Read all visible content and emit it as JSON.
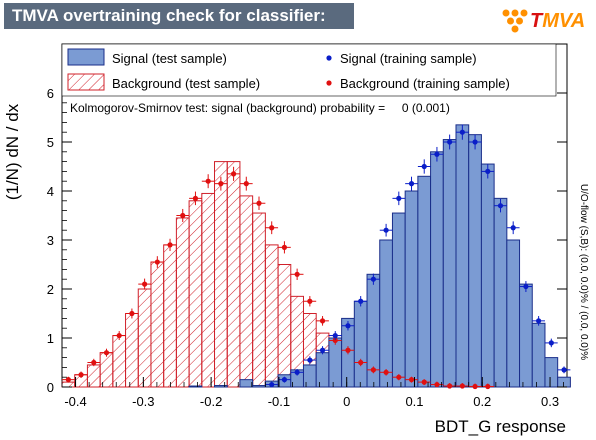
{
  "header": {
    "title": "TMVA overtraining check for classifier: BDT_G",
    "logo_text_t": "T",
    "logo_text_rest": "MVA"
  },
  "colors": {
    "signal_fill": "#7b9bd3",
    "signal_line": "#1a2e8a",
    "signal_points": "#0a1ec8",
    "background_line": "#d0202a",
    "background_points": "#e01010",
    "title_bg": "#5a6a7e"
  },
  "chart_data": {
    "type": "histogram",
    "xlabel": "BDT_G response",
    "ylabel": "(1/N) dN / dx",
    "xlim": [
      -0.42,
      0.325
    ],
    "ylim": [
      0,
      7.0
    ],
    "x_ticks": [
      -0.4,
      -0.3,
      -0.2,
      -0.1,
      0,
      0.1,
      0.2,
      0.3
    ],
    "x_tick_labels": [
      "-0.4",
      "-0.3",
      "-0.2",
      "-0.1",
      "0",
      "0.1",
      "0.2",
      "0.3"
    ],
    "y_ticks": [
      0,
      1,
      2,
      3,
      4,
      5,
      6
    ],
    "y_tick_labels": [
      "0",
      "1",
      "2",
      "3",
      "4",
      "5",
      "6"
    ],
    "bin_edges_start": -0.42,
    "bin_width": 0.01875,
    "series": [
      {
        "name": "Signal (test sample)",
        "style": "filled-hist",
        "values": [
          0,
          0,
          0,
          0,
          0,
          0,
          0,
          0,
          0,
          0,
          0.02,
          0,
          0.03,
          0,
          0.15,
          0.03,
          0.12,
          0.25,
          0.35,
          0.45,
          0.7,
          1.0,
          1.4,
          1.75,
          2.3,
          3.0,
          3.55,
          4.0,
          4.3,
          4.8,
          5.05,
          5.35,
          5.15,
          4.55,
          3.85,
          3.0,
          2.1,
          1.3,
          0.6,
          0.2
        ]
      },
      {
        "name": "Background (test sample)",
        "style": "hatched-hist",
        "values": [
          0.1,
          0.25,
          0.45,
          0.7,
          1.05,
          1.5,
          2.0,
          2.55,
          2.9,
          3.45,
          3.8,
          3.95,
          4.6,
          4.6,
          3.9,
          3.55,
          2.9,
          2.5,
          1.85,
          1.5,
          1.1,
          0.8,
          0.45,
          0.35,
          0.25,
          0.2,
          0.12,
          0.08,
          0.05,
          0.03,
          0.02,
          0.02,
          0.01,
          0.01,
          0,
          0,
          0,
          0,
          0,
          0
        ]
      },
      {
        "name": "Signal (training sample)",
        "style": "points",
        "values": [
          0,
          0,
          0,
          0,
          0,
          0,
          0,
          0,
          0,
          0,
          0,
          0,
          0,
          0,
          0,
          0,
          0.05,
          0.15,
          0.3,
          0.55,
          0.75,
          1.05,
          1.25,
          1.75,
          2.2,
          3.2,
          3.85,
          4.15,
          4.5,
          4.75,
          5.0,
          5.2,
          5.0,
          4.4,
          3.7,
          3.25,
          2.05,
          1.35,
          0.9,
          0.35
        ]
      },
      {
        "name": "Background (training sample)",
        "style": "points",
        "values": [
          0.15,
          0.25,
          0.5,
          0.7,
          1.05,
          1.5,
          2.1,
          2.55,
          2.9,
          3.5,
          3.85,
          4.2,
          4.15,
          4.35,
          4.15,
          3.75,
          3.25,
          2.85,
          2.3,
          1.75,
          1.35,
          0.95,
          0.75,
          0.5,
          0.35,
          0.3,
          0.2,
          0.15,
          0.1,
          0.05,
          0.02,
          0.02,
          0.01,
          0.01,
          0,
          0,
          0,
          0,
          0,
          0
        ]
      }
    ],
    "annotation_ks": "Kolmogorov-Smirnov test: signal (background) probability =     0 (0.001)",
    "side_note": "U/O-flow (S,B): (0.0, 0.0)% / (0.0, 0.0)%",
    "legend_placement": "top, two columns"
  }
}
